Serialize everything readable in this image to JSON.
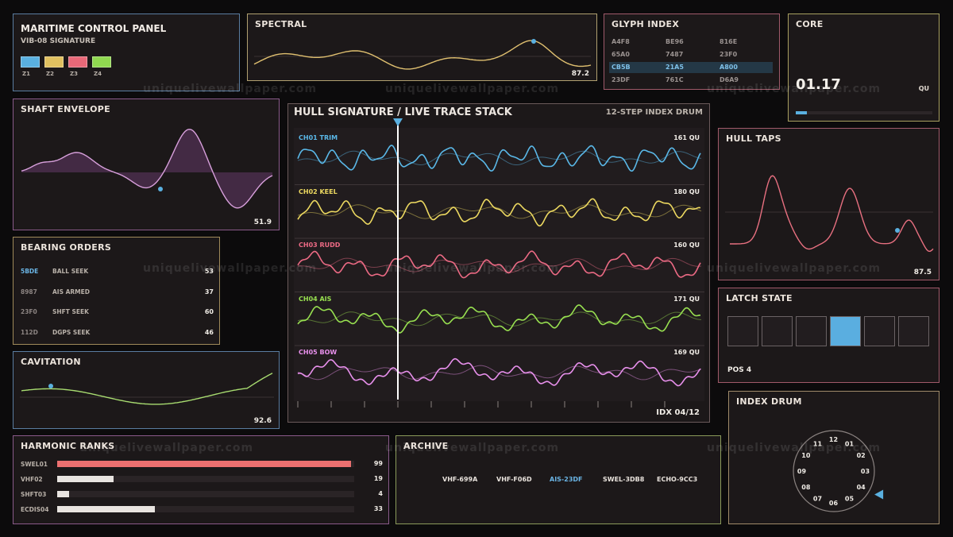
{
  "header": {
    "title": "MARITIME CONTROL PANEL",
    "subtitle": "VIB-08 SIGNATURE",
    "zones": [
      {
        "label": "Z1",
        "color": "#5ab0e0"
      },
      {
        "label": "Z2",
        "color": "#e0c060"
      },
      {
        "label": "Z3",
        "color": "#e86878"
      },
      {
        "label": "Z4",
        "color": "#90d850"
      }
    ]
  },
  "spectral": {
    "title": "SPECTRAL",
    "value": "87.2"
  },
  "glyph_index": {
    "title": "GLYPH INDEX",
    "rows": [
      [
        "A4F8",
        "BE96",
        "816E"
      ],
      [
        "65A0",
        "7487",
        "23F0"
      ],
      [
        "CB5B",
        "21A5",
        "A800"
      ],
      [
        "23DF",
        "761C",
        "D6A9"
      ]
    ],
    "highlight_row": 2
  },
  "core": {
    "title": "CORE",
    "value": "01.17",
    "unit": "QU",
    "level": 0.08
  },
  "shaft_envelope": {
    "title": "SHAFT ENVELOPE",
    "value": "51.9"
  },
  "bearing_orders": {
    "title": "BEARING ORDERS",
    "rows": [
      {
        "code": "5BDE",
        "label": "BALL SEEK",
        "value": "53",
        "highlight": true
      },
      {
        "code": "8987",
        "label": "AIS ARMED",
        "value": "37",
        "highlight": false
      },
      {
        "code": "23F0",
        "label": "SHFT SEEK",
        "value": "60",
        "highlight": false
      },
      {
        "code": "112D",
        "label": "DGPS SEEK",
        "value": "46",
        "highlight": false
      }
    ]
  },
  "cavitation": {
    "title": "CAVITATION",
    "value": "92.6"
  },
  "main": {
    "title": "HULL SIGNATURE / LIVE TRACE STACK",
    "subtitle": "12-STEP INDEX DRUM",
    "index_label": "IDX 04/12",
    "channels": [
      {
        "label": "CH01 TRIM",
        "value": "161 QU",
        "color": "#5ab8e8"
      },
      {
        "label": "CH02 KEEL",
        "value": "180 QU",
        "color": "#ecd860"
      },
      {
        "label": "CH03 RUDD",
        "value": "160 QU",
        "color": "#ec6a84"
      },
      {
        "label": "CH04 AIS",
        "value": "171 QU",
        "color": "#98e050"
      },
      {
        "label": "CH05 BOW",
        "value": "169 QU",
        "color": "#e890ec"
      }
    ]
  },
  "hull_taps": {
    "title": "HULL TAPS",
    "value": "87.5"
  },
  "latch_state": {
    "title": "LATCH STATE",
    "label": "POS 4",
    "count": 6,
    "active": 4
  },
  "harmonic_ranks": {
    "title": "HARMONIC RANKS",
    "rows": [
      {
        "label": "SWEL01",
        "value": "99",
        "pct": 99,
        "color": "#ec7070"
      },
      {
        "label": "VHF02",
        "value": "19",
        "pct": 19,
        "color": "#e8e4e0"
      },
      {
        "label": "SHFT03",
        "value": "4",
        "pct": 4,
        "color": "#e8e4e0"
      },
      {
        "label": "ECDIS04",
        "value": "33",
        "pct": 33,
        "color": "#e8e4e0"
      }
    ]
  },
  "archive": {
    "title": "ARCHIVE",
    "items": [
      {
        "label": "VHF-699A",
        "active": false
      },
      {
        "label": "VHF-F06D",
        "active": false
      },
      {
        "label": "AIS-23DF",
        "active": true
      },
      {
        "label": "SWEL-3DB8",
        "active": false
      },
      {
        "label": "ECHO-9CC3",
        "active": false
      }
    ]
  },
  "index_drum": {
    "title": "INDEX DRUM",
    "labels": [
      "01",
      "02",
      "03",
      "04",
      "05",
      "06",
      "07",
      "08",
      "09",
      "10",
      "11",
      "12"
    ],
    "active": 4
  },
  "watermark": "uniquelivewallpaper.com"
}
